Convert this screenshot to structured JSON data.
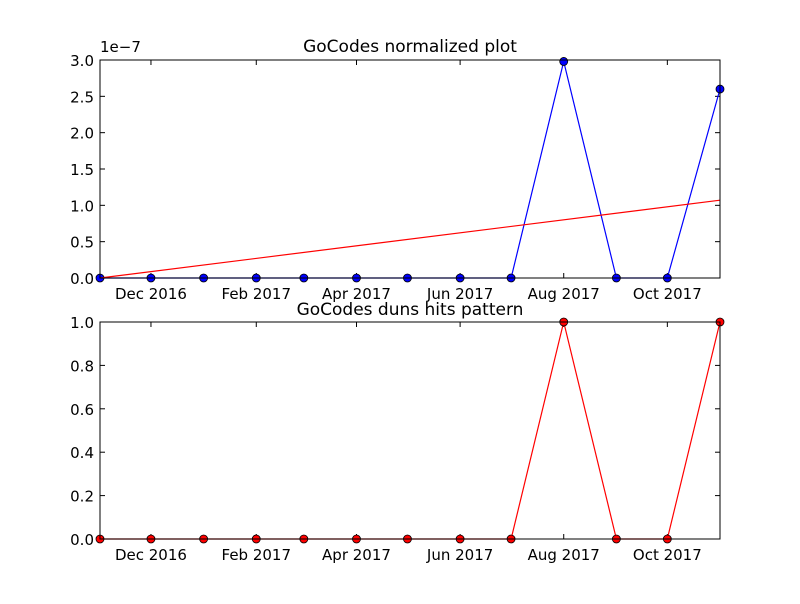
{
  "chart_data": [
    {
      "type": "line",
      "title": "GoCodes normalized plot",
      "offset_label": "1e−7",
      "xlabel": "",
      "ylabel": "",
      "x_ticks": [
        "Dec 2016",
        "Feb 2017",
        "Apr 2017",
        "Jun 2017",
        "Aug 2017",
        "Oct 2017"
      ],
      "x_tick_dates": [
        "2016-12-01",
        "2017-02-01",
        "2017-04-01",
        "2017-06-01",
        "2017-08-01",
        "2017-10-01"
      ],
      "xlim": [
        "2016-11-01",
        "2017-11-01"
      ],
      "y_ticks": [
        "0.0",
        "0.5",
        "1.0",
        "1.5",
        "2.0",
        "2.5",
        "3.0"
      ],
      "ylim": [
        0,
        3e-07
      ],
      "series": [
        {
          "kind": "line-with-markers",
          "color": "#0000ff",
          "marker": "circle",
          "x": [
            "2016-11-01",
            "2016-12-01",
            "2017-01-01",
            "2017-02-01",
            "2017-03-01",
            "2017-04-01",
            "2017-05-01",
            "2017-06-01",
            "2017-07-01",
            "2017-08-01",
            "2017-09-01",
            "2017-10-01",
            "2017-11-01"
          ],
          "values": [
            0,
            0,
            0,
            0,
            0,
            0,
            0,
            0,
            0,
            2.98e-07,
            0,
            0,
            2.6e-07
          ]
        },
        {
          "kind": "trend-line",
          "color": "#ff0000",
          "x": [
            "2016-11-01",
            "2017-11-01"
          ],
          "values": [
            0,
            1.07e-07
          ]
        }
      ]
    },
    {
      "type": "line",
      "title": "GoCodes duns hits pattern",
      "xlabel": "",
      "ylabel": "",
      "x_ticks": [
        "Dec 2016",
        "Feb 2017",
        "Apr 2017",
        "Jun 2017",
        "Aug 2017",
        "Oct 2017"
      ],
      "x_tick_dates": [
        "2016-12-01",
        "2017-02-01",
        "2017-04-01",
        "2017-06-01",
        "2017-08-01",
        "2017-10-01"
      ],
      "xlim": [
        "2016-11-01",
        "2017-11-01"
      ],
      "y_ticks": [
        "0.0",
        "0.2",
        "0.4",
        "0.6",
        "0.8",
        "1.0"
      ],
      "ylim": [
        0,
        1.0
      ],
      "series": [
        {
          "kind": "line-with-markers",
          "color": "#ff0000",
          "marker": "circle",
          "x": [
            "2016-11-01",
            "2016-12-01",
            "2017-01-01",
            "2017-02-01",
            "2017-03-01",
            "2017-04-01",
            "2017-05-01",
            "2017-06-01",
            "2017-07-01",
            "2017-08-01",
            "2017-09-01",
            "2017-10-01",
            "2017-11-01"
          ],
          "values": [
            0,
            0,
            0,
            0,
            0,
            0,
            0,
            0,
            0,
            1,
            0,
            0,
            1
          ]
        }
      ]
    }
  ]
}
